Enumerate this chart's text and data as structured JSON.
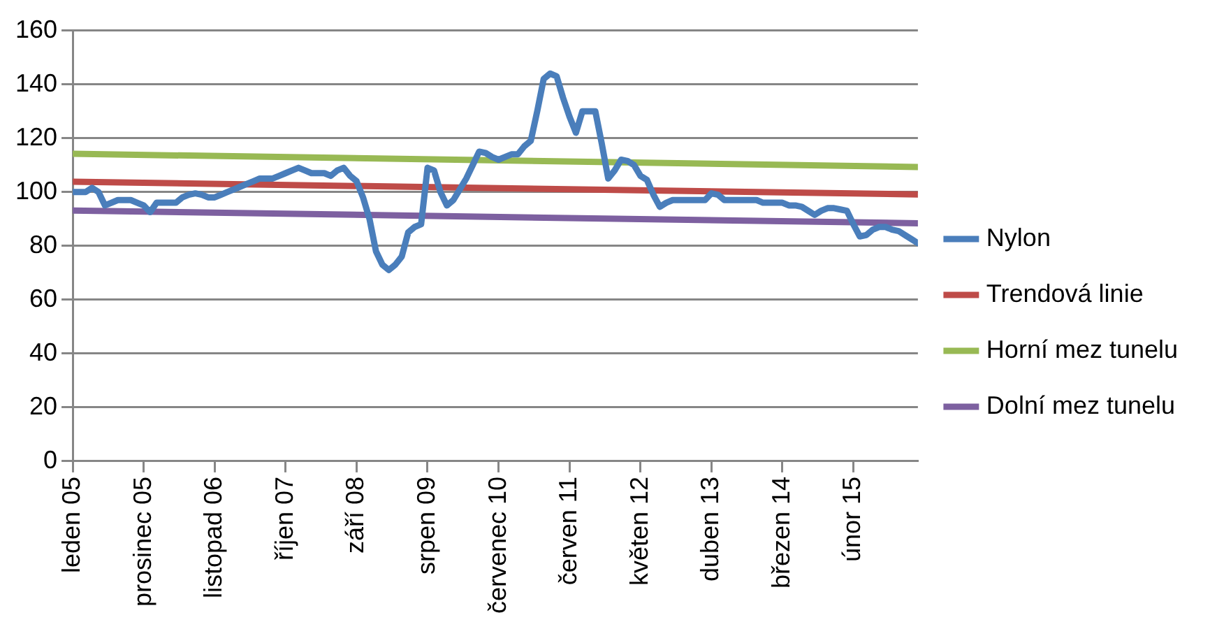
{
  "chart_data": {
    "type": "line",
    "x": [
      "2005-01",
      "2005-02",
      "2005-03",
      "2005-04",
      "2005-05",
      "2005-06",
      "2005-07",
      "2005-08",
      "2005-09",
      "2005-10",
      "2005-11",
      "2005-12",
      "2006-01",
      "2006-02",
      "2006-03",
      "2006-04",
      "2006-05",
      "2006-06",
      "2006-07",
      "2006-08",
      "2006-09",
      "2006-10",
      "2006-11",
      "2006-12",
      "2007-01",
      "2007-02",
      "2007-03",
      "2007-04",
      "2007-05",
      "2007-06",
      "2007-07",
      "2007-08",
      "2007-09",
      "2007-10",
      "2007-11",
      "2007-12",
      "2008-01",
      "2008-02",
      "2008-03",
      "2008-04",
      "2008-05",
      "2008-06",
      "2008-07",
      "2008-08",
      "2008-09",
      "2008-10",
      "2008-11",
      "2008-12",
      "2009-01",
      "2009-02",
      "2009-03",
      "2009-04",
      "2009-05",
      "2009-06",
      "2009-07",
      "2009-08",
      "2009-09",
      "2009-10",
      "2009-11",
      "2009-12",
      "2010-01",
      "2010-02",
      "2010-03",
      "2010-04",
      "2010-05",
      "2010-06",
      "2010-07",
      "2010-08",
      "2010-09",
      "2010-10",
      "2010-11",
      "2010-12",
      "2011-01",
      "2011-02",
      "2011-03",
      "2011-04",
      "2011-05",
      "2011-06",
      "2011-07",
      "2011-08",
      "2011-09",
      "2011-10",
      "2011-11",
      "2011-12",
      "2012-01",
      "2012-02",
      "2012-03",
      "2012-04",
      "2012-05",
      "2012-06",
      "2012-07",
      "2012-08",
      "2012-09",
      "2012-10",
      "2012-11",
      "2012-12",
      "2013-01",
      "2013-02",
      "2013-03",
      "2013-04",
      "2013-05",
      "2013-06",
      "2013-07",
      "2013-08",
      "2013-09",
      "2013-10",
      "2013-11",
      "2013-12",
      "2014-01",
      "2014-02",
      "2014-03",
      "2014-04",
      "2014-05",
      "2014-06",
      "2014-07",
      "2014-08",
      "2014-09",
      "2014-10",
      "2014-11",
      "2014-12",
      "2015-01",
      "2015-02",
      "2015-03",
      "2015-04",
      "2015-05",
      "2015-06",
      "2015-07",
      "2015-08",
      "2015-09",
      "2015-10",
      "2015-11",
      "2015-12"
    ],
    "series": [
      {
        "name": "Nylon",
        "color": "#4a7ebb",
        "values": [
          100,
          100,
          100,
          101.5,
          100,
          95,
          96,
          97,
          97,
          97,
          96,
          95,
          92.5,
          96,
          96,
          96,
          96,
          98,
          99,
          99.5,
          99,
          98,
          98,
          99,
          100,
          101,
          102,
          103,
          104,
          105,
          105,
          105,
          106,
          107,
          108,
          109,
          108,
          107,
          107,
          107,
          106,
          108,
          109,
          106,
          104,
          98,
          90,
          78,
          73,
          71,
          73,
          76,
          85,
          87,
          88,
          109,
          108,
          100,
          95,
          97,
          101,
          105,
          110,
          115,
          114.5,
          113,
          112,
          113,
          114,
          114,
          117,
          119,
          130,
          142,
          144,
          143,
          135,
          128,
          122,
          130,
          130,
          130,
          118,
          105,
          108,
          112,
          111.5,
          110,
          106,
          104.5,
          99,
          94.5,
          96,
          97,
          97,
          97,
          97,
          97,
          97,
          99.5,
          99,
          97,
          97,
          97,
          97,
          97,
          97,
          96,
          96,
          96,
          96,
          95,
          95,
          94.5,
          93,
          91.5,
          93,
          94,
          94,
          93.5,
          93,
          88,
          83.5,
          84,
          86,
          87,
          87,
          86,
          85.5,
          84,
          82.5,
          81
        ]
      },
      {
        "name": "Trendová linie",
        "color": "#be4b48",
        "type": "line",
        "x": [
          "2005-01",
          "2015-12"
        ],
        "values": [
          103.8,
          99.1
        ]
      },
      {
        "name": "Horní mez tunelu",
        "color": "#98b954",
        "type": "line",
        "x": [
          "2005-01",
          "2015-12"
        ],
        "values": [
          114.2,
          109.3
        ]
      },
      {
        "name": "Dolní mez tunelu",
        "color": "#7d60a0",
        "type": "line",
        "x": [
          "2005-01",
          "2015-12"
        ],
        "values": [
          93.1,
          88.4
        ]
      }
    ],
    "xlim": [
      "2005-01",
      "2015-12"
    ],
    "xticks": [
      {
        "value": "2005-01",
        "label": "leden 05"
      },
      {
        "value": "2005-12",
        "label": "prosinec 05"
      },
      {
        "value": "2006-11",
        "label": "listopad 06"
      },
      {
        "value": "2007-10",
        "label": "říjen 07"
      },
      {
        "value": "2008-09",
        "label": "září 08"
      },
      {
        "value": "2009-08",
        "label": "srpen 09"
      },
      {
        "value": "2010-07",
        "label": "červenec 10"
      },
      {
        "value": "2011-06",
        "label": "červen 11"
      },
      {
        "value": "2012-05",
        "label": "květen 12"
      },
      {
        "value": "2013-04",
        "label": "duben 13"
      },
      {
        "value": "2014-03",
        "label": "březen 14"
      },
      {
        "value": "2015-02",
        "label": "únor 15"
      }
    ],
    "ylim": [
      0,
      160
    ],
    "yticks": [
      0,
      20,
      40,
      60,
      80,
      100,
      120,
      140,
      160
    ],
    "grid": "y",
    "legend": "right",
    "marker": "none",
    "line_style": "solid"
  }
}
